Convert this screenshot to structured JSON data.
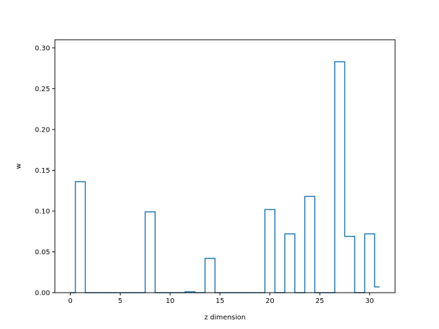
{
  "chart_data": {
    "type": "step",
    "title": "",
    "xlabel": "z dimension",
    "ylabel": "w",
    "xlim": [
      -1.55,
      32.55
    ],
    "ylim": [
      0.0,
      0.31
    ],
    "xticks": [
      0,
      5,
      10,
      15,
      20,
      25,
      30
    ],
    "yticks": [
      0.0,
      0.05,
      0.1,
      0.15,
      0.2,
      0.25,
      0.3
    ],
    "ytick_labels": [
      "0.00",
      "0.05",
      "0.10",
      "0.15",
      "0.20",
      "0.25",
      "0.30"
    ],
    "grid": false,
    "line_color": "#1f77b4",
    "step_where": "mid",
    "x": [
      0,
      1,
      2,
      3,
      4,
      5,
      6,
      7,
      8,
      9,
      10,
      11,
      12,
      13,
      14,
      15,
      16,
      17,
      18,
      19,
      20,
      21,
      22,
      23,
      24,
      25,
      26,
      27,
      28,
      29,
      30,
      31
    ],
    "values": [
      0.0,
      0.136,
      0.0,
      0.0,
      0.0,
      0.0,
      0.0,
      0.0,
      0.099,
      0.0,
      0.0,
      0.0,
      0.001,
      0.0,
      0.042,
      0.0,
      0.0,
      0.0,
      0.0,
      0.0,
      0.102,
      0.0,
      0.072,
      0.0,
      0.118,
      0.0,
      0.0,
      0.283,
      0.069,
      0.0,
      0.072,
      0.007
    ]
  }
}
